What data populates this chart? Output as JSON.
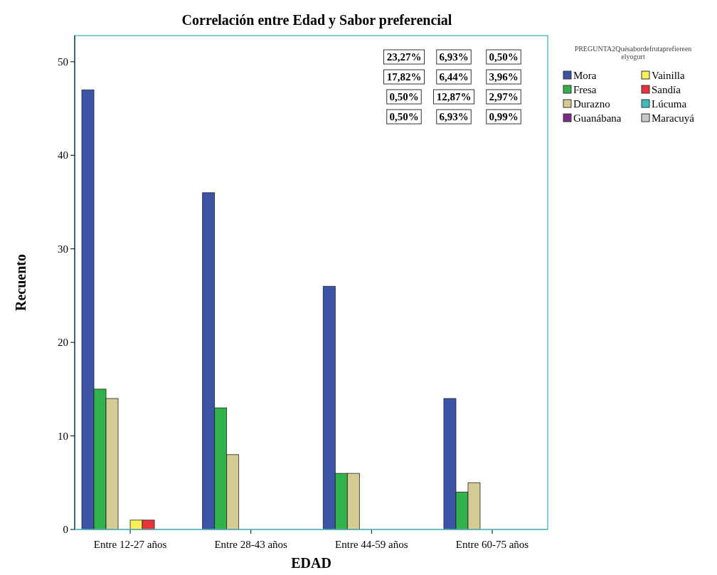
{
  "chart_data": {
    "type": "bar",
    "title": "Correlación entre Edad y Sabor preferencial",
    "xlabel": "EDAD",
    "ylabel": "Recuento",
    "legend_title": "PREGUNTA2Quésabordefrutaprefiereenelyogurt",
    "categories": [
      "Entre 12-27 años",
      "Entre 28-43 años",
      "Entre 44-59 años",
      "Entre 60-75 años"
    ],
    "series": [
      {
        "name": "Mora",
        "color": "#3b54a8",
        "values": [
          47,
          36,
          26,
          14
        ]
      },
      {
        "name": "Fresa",
        "color": "#2fb34a",
        "values": [
          15,
          13,
          6,
          4
        ]
      },
      {
        "name": "Durazno",
        "color": "#d4cc94",
        "values": [
          14,
          8,
          6,
          5
        ]
      },
      {
        "name": "Guanábana",
        "color": "#7a2a84",
        "values": [
          0,
          0,
          0,
          0
        ]
      },
      {
        "name": "Vainilla",
        "color": "#f7f056",
        "values": [
          1,
          0,
          0,
          0
        ]
      },
      {
        "name": "Sandía",
        "color": "#e8333a",
        "values": [
          1,
          0,
          0,
          0
        ]
      },
      {
        "name": "Lúcuma",
        "color": "#3cbcbc",
        "values": [
          0,
          0,
          0,
          0
        ]
      },
      {
        "name": "Maracuyá",
        "color": "#c8c8c8",
        "values": [
          0,
          0,
          0,
          0
        ]
      }
    ],
    "ylim": [
      0,
      52.8
    ],
    "yticks": [
      0,
      10,
      20,
      30,
      40,
      50
    ],
    "grid": false,
    "legend": "top right",
    "annotations": [
      "23,27%",
      "6,93%",
      "0,50%",
      "17,82%",
      "6,44%",
      "3,96%",
      "0,50%",
      "12,87%",
      "2,97%",
      "0,50%",
      "6,93%",
      "0,99%"
    ]
  }
}
